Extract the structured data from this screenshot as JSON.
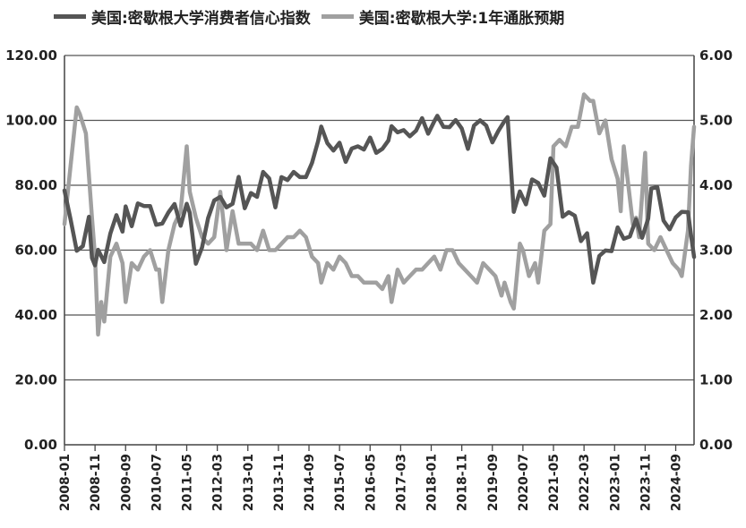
{
  "chart_data": {
    "type": "line",
    "legend_position": "top",
    "grid": true,
    "series": [
      {
        "name": "美国:密歇根大学消费者信心指数",
        "axis": "left",
        "color": "#555555",
        "points": [
          [
            "2008-01",
            78.4
          ],
          [
            "2008-03",
            69.5
          ],
          [
            "2008-05",
            59.8
          ],
          [
            "2008-07",
            61.2
          ],
          [
            "2008-09",
            70.3
          ],
          [
            "2008-10",
            57.6
          ],
          [
            "2008-11",
            55.3
          ],
          [
            "2008-12",
            60.1
          ],
          [
            "2009-02",
            56.3
          ],
          [
            "2009-04",
            65.1
          ],
          [
            "2009-06",
            70.8
          ],
          [
            "2009-08",
            65.7
          ],
          [
            "2009-09",
            73.5
          ],
          [
            "2009-11",
            67.4
          ],
          [
            "2010-01",
            74.4
          ],
          [
            "2010-03",
            73.6
          ],
          [
            "2010-05",
            73.6
          ],
          [
            "2010-07",
            67.8
          ],
          [
            "2010-09",
            68.2
          ],
          [
            "2010-11",
            71.6
          ],
          [
            "2011-01",
            74.2
          ],
          [
            "2011-03",
            67.5
          ],
          [
            "2011-05",
            74.3
          ],
          [
            "2011-06",
            71.5
          ],
          [
            "2011-08",
            55.8
          ],
          [
            "2011-10",
            60.8
          ],
          [
            "2011-12",
            69.9
          ],
          [
            "2012-02",
            75.3
          ],
          [
            "2012-04",
            76.4
          ],
          [
            "2012-06",
            73.2
          ],
          [
            "2012-08",
            74.3
          ],
          [
            "2012-10",
            82.6
          ],
          [
            "2012-12",
            72.9
          ],
          [
            "2013-02",
            77.6
          ],
          [
            "2013-04",
            76.4
          ],
          [
            "2013-06",
            84.1
          ],
          [
            "2013-08",
            82.1
          ],
          [
            "2013-10",
            73.2
          ],
          [
            "2013-12",
            82.5
          ],
          [
            "2014-02",
            81.6
          ],
          [
            "2014-04",
            84.1
          ],
          [
            "2014-06",
            82.5
          ],
          [
            "2014-08",
            82.5
          ],
          [
            "2014-10",
            86.9
          ],
          [
            "2014-12",
            93.6
          ],
          [
            "2015-01",
            98.1
          ],
          [
            "2015-03",
            93.0
          ],
          [
            "2015-05",
            90.7
          ],
          [
            "2015-07",
            93.1
          ],
          [
            "2015-09",
            87.2
          ],
          [
            "2015-11",
            91.3
          ],
          [
            "2016-01",
            92.0
          ],
          [
            "2016-03",
            91.0
          ],
          [
            "2016-05",
            94.7
          ],
          [
            "2016-07",
            90.0
          ],
          [
            "2016-09",
            91.2
          ],
          [
            "2016-11",
            93.8
          ],
          [
            "2016-12",
            98.2
          ],
          [
            "2017-02",
            96.3
          ],
          [
            "2017-04",
            97.0
          ],
          [
            "2017-06",
            95.1
          ],
          [
            "2017-08",
            96.8
          ],
          [
            "2017-10",
            100.7
          ],
          [
            "2017-12",
            95.9
          ],
          [
            "2018-02",
            99.7
          ],
          [
            "2018-03",
            101.4
          ],
          [
            "2018-05",
            98.0
          ],
          [
            "2018-07",
            97.9
          ],
          [
            "2018-09",
            100.1
          ],
          [
            "2018-11",
            97.5
          ],
          [
            "2019-01",
            91.2
          ],
          [
            "2019-03",
            98.4
          ],
          [
            "2019-05",
            100.0
          ],
          [
            "2019-07",
            98.4
          ],
          [
            "2019-09",
            93.2
          ],
          [
            "2019-11",
            96.8
          ],
          [
            "2020-01",
            99.8
          ],
          [
            "2020-02",
            101.0
          ],
          [
            "2020-04",
            71.8
          ],
          [
            "2020-06",
            78.1
          ],
          [
            "2020-08",
            74.1
          ],
          [
            "2020-10",
            81.8
          ],
          [
            "2020-12",
            80.7
          ],
          [
            "2021-02",
            76.8
          ],
          [
            "2021-04",
            88.3
          ],
          [
            "2021-06",
            85.5
          ],
          [
            "2021-08",
            70.3
          ],
          [
            "2021-10",
            71.7
          ],
          [
            "2021-12",
            70.6
          ],
          [
            "2022-02",
            62.8
          ],
          [
            "2022-04",
            65.2
          ],
          [
            "2022-06",
            50.0
          ],
          [
            "2022-08",
            58.2
          ],
          [
            "2022-10",
            59.9
          ],
          [
            "2022-12",
            59.7
          ],
          [
            "2023-02",
            67.0
          ],
          [
            "2023-04",
            63.5
          ],
          [
            "2023-06",
            64.2
          ],
          [
            "2023-08",
            69.5
          ],
          [
            "2023-10",
            63.8
          ],
          [
            "2023-12",
            69.7
          ],
          [
            "2024-01",
            79.0
          ],
          [
            "2024-03",
            79.4
          ],
          [
            "2024-05",
            69.1
          ],
          [
            "2024-07",
            66.4
          ],
          [
            "2024-09",
            70.1
          ],
          [
            "2024-11",
            71.8
          ],
          [
            "2025-01",
            71.7
          ],
          [
            "2025-02",
            64.7
          ],
          [
            "2025-03",
            57.9
          ]
        ]
      },
      {
        "name": "美国:密歇根大学:1年通胀预期",
        "axis": "right",
        "color": "#a0a0a0",
        "points": [
          [
            "2008-01",
            3.4
          ],
          [
            "2008-03",
            4.3
          ],
          [
            "2008-05",
            5.2
          ],
          [
            "2008-06",
            5.1
          ],
          [
            "2008-08",
            4.8
          ],
          [
            "2008-10",
            3.5
          ],
          [
            "2008-11",
            2.9
          ],
          [
            "2008-12",
            1.7
          ],
          [
            "2009-01",
            2.2
          ],
          [
            "2009-02",
            1.9
          ],
          [
            "2009-04",
            2.9
          ],
          [
            "2009-06",
            3.1
          ],
          [
            "2009-08",
            2.8
          ],
          [
            "2009-09",
            2.2
          ],
          [
            "2009-11",
            2.8
          ],
          [
            "2010-01",
            2.7
          ],
          [
            "2010-03",
            2.9
          ],
          [
            "2010-05",
            3.0
          ],
          [
            "2010-07",
            2.7
          ],
          [
            "2010-08",
            2.7
          ],
          [
            "2010-09",
            2.2
          ],
          [
            "2010-11",
            3.0
          ],
          [
            "2011-01",
            3.4
          ],
          [
            "2011-03",
            3.6
          ],
          [
            "2011-05",
            4.6
          ],
          [
            "2011-06",
            3.9
          ],
          [
            "2011-08",
            3.5
          ],
          [
            "2011-10",
            3.2
          ],
          [
            "2011-12",
            3.1
          ],
          [
            "2012-02",
            3.2
          ],
          [
            "2012-04",
            3.9
          ],
          [
            "2012-06",
            3.0
          ],
          [
            "2012-08",
            3.6
          ],
          [
            "2012-10",
            3.1
          ],
          [
            "2012-12",
            3.1
          ],
          [
            "2013-02",
            3.1
          ],
          [
            "2013-04",
            3.0
          ],
          [
            "2013-06",
            3.3
          ],
          [
            "2013-08",
            3.0
          ],
          [
            "2013-10",
            3.0
          ],
          [
            "2013-12",
            3.1
          ],
          [
            "2014-02",
            3.2
          ],
          [
            "2014-04",
            3.2
          ],
          [
            "2014-06",
            3.3
          ],
          [
            "2014-08",
            3.2
          ],
          [
            "2014-10",
            2.9
          ],
          [
            "2014-12",
            2.8
          ],
          [
            "2015-01",
            2.5
          ],
          [
            "2015-03",
            2.8
          ],
          [
            "2015-05",
            2.7
          ],
          [
            "2015-07",
            2.9
          ],
          [
            "2015-09",
            2.8
          ],
          [
            "2015-11",
            2.6
          ],
          [
            "2016-01",
            2.6
          ],
          [
            "2016-03",
            2.5
          ],
          [
            "2016-05",
            2.5
          ],
          [
            "2016-07",
            2.5
          ],
          [
            "2016-09",
            2.4
          ],
          [
            "2016-11",
            2.6
          ],
          [
            "2016-12",
            2.2
          ],
          [
            "2017-02",
            2.7
          ],
          [
            "2017-04",
            2.5
          ],
          [
            "2017-06",
            2.6
          ],
          [
            "2017-08",
            2.7
          ],
          [
            "2017-10",
            2.7
          ],
          [
            "2017-12",
            2.8
          ],
          [
            "2018-02",
            2.9
          ],
          [
            "2018-04",
            2.7
          ],
          [
            "2018-06",
            3.0
          ],
          [
            "2018-08",
            3.0
          ],
          [
            "2018-10",
            2.8
          ],
          [
            "2018-12",
            2.7
          ],
          [
            "2019-02",
            2.6
          ],
          [
            "2019-04",
            2.5
          ],
          [
            "2019-06",
            2.8
          ],
          [
            "2019-08",
            2.7
          ],
          [
            "2019-10",
            2.6
          ],
          [
            "2019-12",
            2.3
          ],
          [
            "2020-01",
            2.5
          ],
          [
            "2020-03",
            2.2
          ],
          [
            "2020-04",
            2.1
          ],
          [
            "2020-06",
            3.1
          ],
          [
            "2020-07",
            3.0
          ],
          [
            "2020-09",
            2.6
          ],
          [
            "2020-11",
            2.8
          ],
          [
            "2020-12",
            2.5
          ],
          [
            "2021-02",
            3.3
          ],
          [
            "2021-04",
            3.4
          ],
          [
            "2021-05",
            4.6
          ],
          [
            "2021-07",
            4.7
          ],
          [
            "2021-09",
            4.6
          ],
          [
            "2021-11",
            4.9
          ],
          [
            "2022-01",
            4.9
          ],
          [
            "2022-03",
            5.4
          ],
          [
            "2022-05",
            5.3
          ],
          [
            "2022-06",
            5.3
          ],
          [
            "2022-08",
            4.8
          ],
          [
            "2022-10",
            5.0
          ],
          [
            "2022-12",
            4.4
          ],
          [
            "2023-02",
            4.1
          ],
          [
            "2023-03",
            3.6
          ],
          [
            "2023-04",
            4.6
          ],
          [
            "2023-05",
            4.2
          ],
          [
            "2023-07",
            3.4
          ],
          [
            "2023-08",
            3.5
          ],
          [
            "2023-09",
            3.2
          ],
          [
            "2023-11",
            4.5
          ],
          [
            "2023-12",
            3.1
          ],
          [
            "2024-02",
            3.0
          ],
          [
            "2024-04",
            3.2
          ],
          [
            "2024-06",
            3.0
          ],
          [
            "2024-08",
            2.8
          ],
          [
            "2024-10",
            2.7
          ],
          [
            "2024-11",
            2.6
          ],
          [
            "2025-01",
            3.3
          ],
          [
            "2025-02",
            4.3
          ],
          [
            "2025-03",
            4.9
          ]
        ]
      }
    ],
    "left_axis": {
      "min": 0,
      "max": 120,
      "ticks": [
        "0.00",
        "20.00",
        "40.00",
        "60.00",
        "80.00",
        "100.00",
        "120.00"
      ]
    },
    "right_axis": {
      "min": 0,
      "max": 6,
      "ticks": [
        "0.00",
        "1.00",
        "2.00",
        "3.00",
        "4.00",
        "5.00",
        "6.00"
      ]
    },
    "x_axis": {
      "min": "2008-01",
      "max": "2025-03",
      "tick_labels": [
        "2008-01",
        "2008-11",
        "2009-09",
        "2010-07",
        "2011-05",
        "2012-03",
        "2013-01",
        "2013-11",
        "2014-09",
        "2015-07",
        "2016-05",
        "2017-03",
        "2018-01",
        "2018-11",
        "2019-09",
        "2020-07",
        "2021-05",
        "2022-03",
        "2023-01",
        "2023-11",
        "2024-09"
      ]
    }
  }
}
